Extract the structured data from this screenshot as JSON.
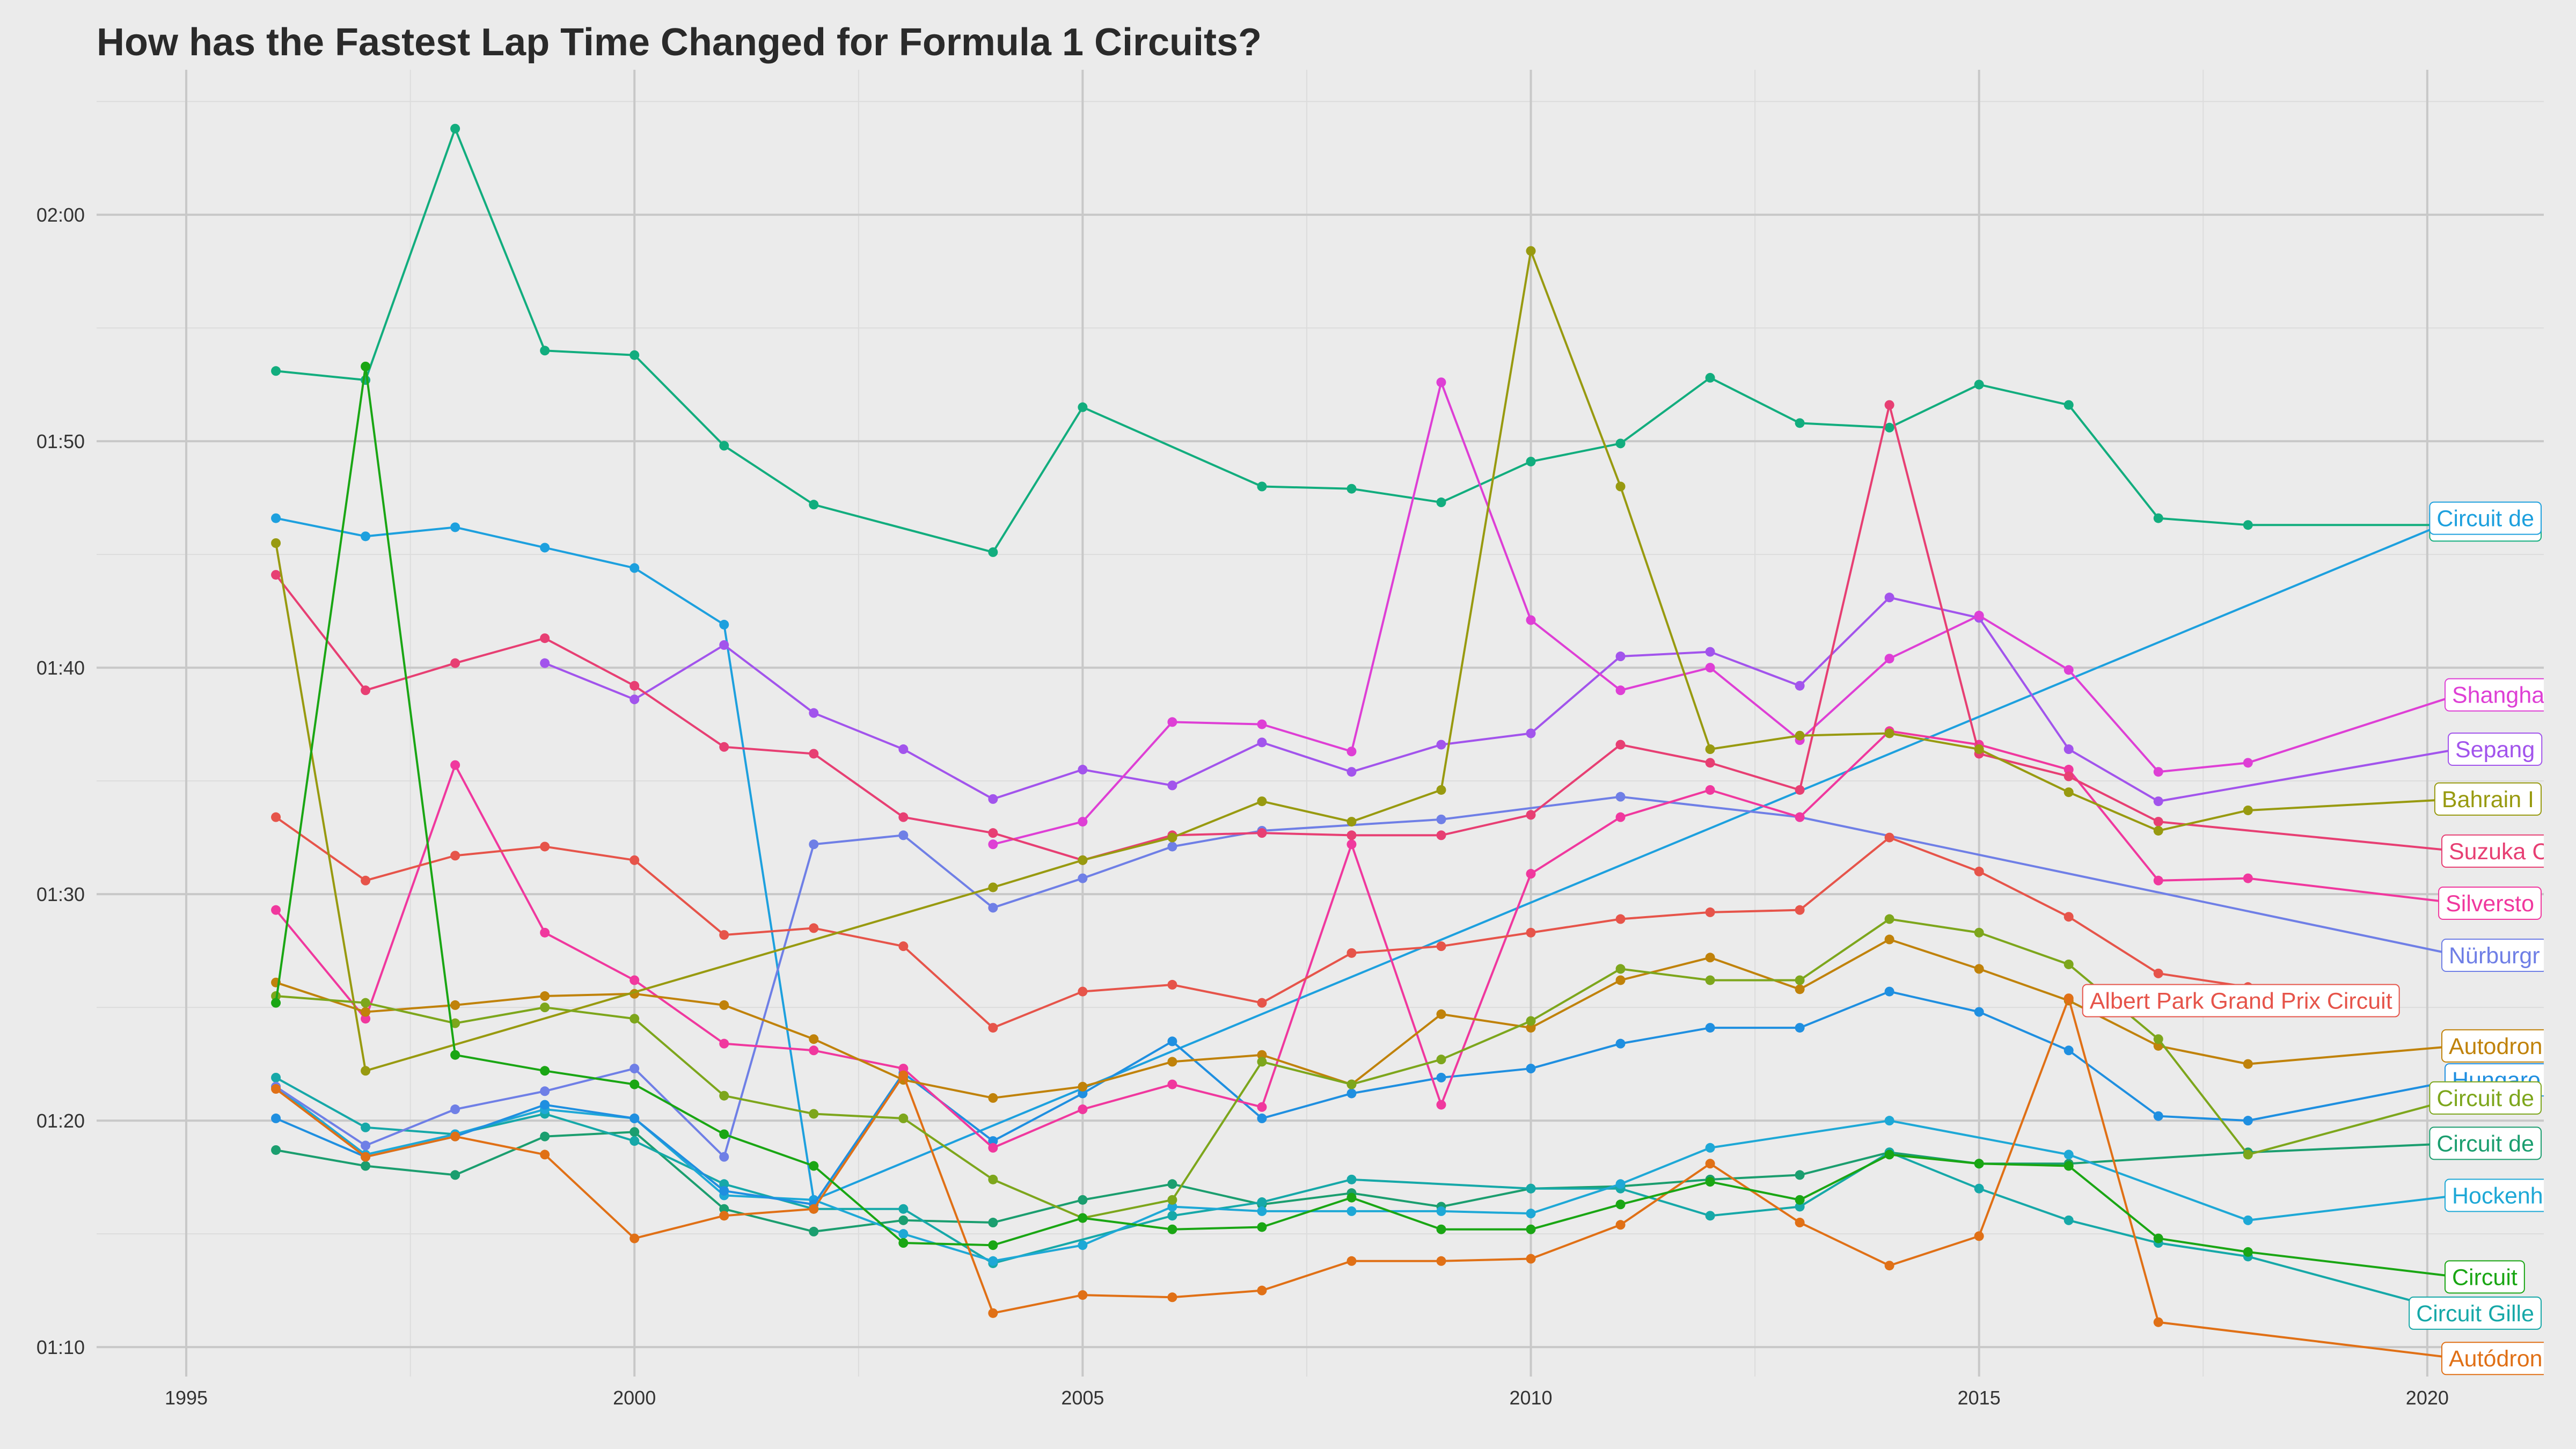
{
  "chart_data": {
    "type": "line",
    "title": "How has the Fastest Lap Time Changed for Formula 1 Circuits?",
    "xlabel": "",
    "ylabel": "",
    "x_ticks": [
      1995,
      2000,
      2005,
      2010,
      2015,
      2020
    ],
    "y_ticks": [
      "01:10",
      "01:20",
      "01:30",
      "01:40",
      "01:50",
      "02:00"
    ],
    "y_tick_values": [
      70,
      80,
      90,
      100,
      110,
      120
    ],
    "xlim": [
      1994,
      2021.3
    ],
    "ylim": [
      68.7,
      126.4
    ],
    "y_unit": "seconds",
    "grid": true,
    "legend": "none",
    "series": [
      {
        "name": "Circuit de Spa-Francorchamps",
        "label_text": "Circuit de",
        "color": "#12ad7e",
        "x": [
          1996,
          1997,
          1998,
          1999,
          2000,
          2001,
          2002,
          2004,
          2005,
          2007,
          2008,
          2009,
          2010,
          2011,
          2012,
          2013,
          2014,
          2015,
          2016,
          2017,
          2018
        ],
        "y": [
          113.1,
          112.7,
          123.8,
          114.0,
          113.8,
          109.8,
          107.2,
          105.1,
          111.5,
          108.0,
          107.9,
          107.3,
          109.1,
          109.9,
          112.8,
          110.8,
          110.6,
          112.5,
          111.6,
          106.6,
          106.3
        ],
        "label_y": 106.3
      },
      {
        "name": "Circuit de Monaco",
        "label_text": "Circuit de",
        "color": "#1b9e6f",
        "x": [
          1996,
          1997,
          1998,
          1999,
          2000,
          2001,
          2002,
          2003,
          2004,
          2005,
          2006,
          2007,
          2008,
          2009,
          2010,
          2011,
          2012,
          2013,
          2014,
          2015,
          2016,
          2018
        ],
        "y": [
          78.7,
          78.0,
          77.6,
          79.3,
          79.5,
          76.1,
          75.1,
          75.6,
          75.5,
          76.5,
          77.2,
          76.3,
          76.8,
          76.2,
          77.0,
          77.1,
          77.4,
          77.6,
          78.6,
          78.1,
          78.1,
          78.6
        ],
        "label_y": 79.0
      },
      {
        "name": "Circuit Gilles Villeneuve",
        "label_text": "Circuit Gille",
        "color": "#16a8a8",
        "x": [
          1996,
          1997,
          1998,
          1999,
          2000,
          2001,
          2002,
          2003,
          2004,
          2006,
          2007,
          2008,
          2010,
          2011,
          2012,
          2013,
          2014,
          2015,
          2016,
          2017,
          2018
        ],
        "y": [
          81.9,
          79.7,
          79.4,
          80.3,
          79.1,
          77.2,
          76.1,
          76.1,
          73.7,
          75.8,
          76.4,
          77.4,
          77.0,
          77.0,
          75.8,
          76.2,
          78.6,
          77.0,
          75.6,
          74.6,
          74.0
        ],
        "label_y": 71.5
      },
      {
        "name": "Hockenheimring",
        "label_text": "Hockenh",
        "color": "#1ea8d6",
        "x": [
          1996,
          1997,
          1998,
          1999,
          2000,
          2001,
          2002,
          2003,
          2004,
          2005,
          2006,
          2007,
          2008,
          2009,
          2010,
          2011,
          2012,
          2014,
          2016,
          2018
        ],
        "y": [
          81.5,
          78.5,
          79.4,
          80.5,
          80.1,
          76.7,
          76.5,
          75.0,
          73.8,
          74.5,
          76.2,
          76.0,
          76.0,
          76.0,
          75.9,
          77.2,
          78.8,
          80.0,
          78.5,
          75.6
        ],
        "label_y": 76.7
      },
      {
        "name": "Circuit de Barcelona-Catalunya",
        "label_text": "Circuit de",
        "color": "#1da0de",
        "x": [
          1996,
          1997,
          1998,
          1999,
          2000,
          2001,
          2002
        ],
        "y": [
          106.6,
          105.8,
          106.2,
          105.3,
          104.4,
          101.9,
          76.5
        ],
        "label_y": 106.6
      },
      {
        "name": "Hungaroring",
        "label_text": "Hungaro",
        "color": "#1f8fe0",
        "x": [
          1996,
          1997,
          1998,
          1999,
          2000,
          2001,
          2002,
          2003,
          2004,
          2005,
          2006,
          2007,
          2008,
          2009,
          2010,
          2011,
          2012,
          2013,
          2014,
          2015,
          2016,
          2017,
          2018
        ],
        "y": [
          80.1,
          78.4,
          79.3,
          80.7,
          80.1,
          76.9,
          76.3,
          82.1,
          79.1,
          81.2,
          83.5,
          80.1,
          81.2,
          81.9,
          82.3,
          83.4,
          84.1,
          84.1,
          85.7,
          84.8,
          83.1,
          80.2,
          80.0
        ],
        "label_y": 81.8
      },
      {
        "name": "Nürburgring",
        "label_text": "Nürburgr",
        "color": "#6f7fe6",
        "x": [
          1996,
          1997,
          1998,
          1999,
          2000,
          2001,
          2002,
          2003,
          2004,
          2005,
          2006,
          2007,
          2009,
          2011,
          2013
        ],
        "y": [
          81.5,
          78.9,
          80.5,
          81.3,
          82.3,
          78.4,
          92.2,
          92.6,
          89.4,
          90.7,
          92.1,
          92.8,
          93.3,
          94.3,
          93.4
        ],
        "label_y": 87.3
      },
      {
        "name": "Sepang International Circuit",
        "label_text": "Sepang",
        "color": "#a254ec",
        "x": [
          1999,
          2000,
          2001,
          2002,
          2003,
          2004,
          2005,
          2006,
          2007,
          2008,
          2009,
          2010,
          2011,
          2012,
          2013,
          2014,
          2015,
          2016,
          2017
        ],
        "y": [
          100.2,
          98.6,
          101.0,
          98.0,
          96.4,
          94.2,
          95.5,
          94.8,
          96.7,
          95.4,
          96.6,
          97.1,
          100.5,
          100.7,
          99.2,
          103.1,
          102.2,
          96.4,
          94.1
        ],
        "label_y": 96.4
      },
      {
        "name": "Shanghai International Circuit",
        "label_text": "Shangha",
        "color": "#de3fd5",
        "x": [
          2004,
          2005,
          2006,
          2007,
          2008,
          2009,
          2010,
          2011,
          2012,
          2013,
          2014,
          2015,
          2016,
          2017,
          2018
        ],
        "y": [
          92.2,
          93.2,
          97.6,
          97.5,
          96.3,
          112.6,
          102.1,
          99.0,
          100.0,
          96.8,
          100.4,
          102.3,
          99.9,
          95.4,
          95.8
        ],
        "label_y": 98.8
      },
      {
        "name": "Silverstone Circuit",
        "label_text": "Silversto",
        "color": "#f0389e",
        "x": [
          1996,
          1997,
          1998,
          1999,
          2000,
          2001,
          2002,
          2003,
          2004,
          2005,
          2006,
          2007,
          2008,
          2009,
          2010,
          2011,
          2012,
          2013,
          2014,
          2015,
          2016,
          2017,
          2018
        ],
        "y": [
          89.3,
          84.5,
          95.7,
          88.3,
          86.2,
          83.4,
          83.1,
          82.3,
          78.8,
          80.5,
          81.6,
          80.6,
          92.2,
          80.7,
          90.9,
          93.4,
          94.6,
          93.4,
          97.2,
          96.6,
          95.5,
          90.6,
          90.7
        ],
        "label_y": 89.6
      },
      {
        "name": "Suzuka Circuit",
        "label_text": "Suzuka C",
        "color": "#e73f73",
        "x": [
          1996,
          1997,
          1998,
          1999,
          2000,
          2001,
          2002,
          2003,
          2004,
          2005,
          2006,
          2007,
          2008,
          2009,
          2010,
          2011,
          2012,
          2013,
          2014,
          2015,
          2016,
          2017
        ],
        "y": [
          104.1,
          99.0,
          100.2,
          101.3,
          99.2,
          96.5,
          96.2,
          93.4,
          92.7,
          91.5,
          92.6,
          92.7,
          92.6,
          92.6,
          93.5,
          96.6,
          95.8,
          94.6,
          111.6,
          96.2,
          95.2,
          93.2
        ],
        "label_y": 91.9
      },
      {
        "name": "Albert Park Grand Prix Circuit",
        "label_text": "Albert Park Grand Prix Circuit",
        "color": "#e6544a",
        "x": [
          1996,
          1997,
          1998,
          1999,
          2000,
          2001,
          2002,
          2003,
          2004,
          2005,
          2006,
          2007,
          2008,
          2009,
          2010,
          2011,
          2012,
          2013,
          2014,
          2015,
          2016,
          2017,
          2018
        ],
        "y": [
          93.4,
          90.6,
          91.7,
          92.1,
          91.5,
          88.2,
          88.5,
          87.7,
          84.1,
          85.7,
          86.0,
          85.2,
          87.4,
          87.7,
          88.3,
          88.9,
          89.2,
          89.3,
          92.5,
          91.0,
          89.0,
          86.5,
          85.9
        ],
        "label_y": 85.3
      },
      {
        "name": "Autodromo Nazionale di Monza",
        "label_text": "Autodron",
        "color": "#c0820a",
        "x": [
          1996,
          1997,
          1998,
          1999,
          2000,
          2001,
          2002,
          2003,
          2004,
          2005,
          2006,
          2007,
          2008,
          2009,
          2010,
          2011,
          2012,
          2013,
          2014,
          2015,
          2016,
          2017,
          2018
        ],
        "y": [
          86.1,
          84.8,
          85.1,
          85.5,
          85.6,
          85.1,
          83.6,
          81.8,
          81.0,
          81.5,
          82.6,
          82.9,
          81.6,
          84.7,
          84.1,
          86.2,
          87.2,
          85.8,
          88.0,
          86.7,
          85.3,
          83.3,
          82.5
        ],
        "label_y": 83.3
      },
      {
        "name": "Autódromo José Carlos Pace",
        "label_text": "Autódron",
        "color": "#e07016",
        "x": [
          1996,
          1997,
          1998,
          1999,
          2000,
          2001,
          2002,
          2003,
          2004,
          2005,
          2006,
          2007,
          2008,
          2009,
          2010,
          2011,
          2012,
          2013,
          2014,
          2015,
          2016,
          2017
        ],
        "y": [
          81.4,
          78.4,
          79.3,
          78.5,
          74.8,
          75.8,
          76.1,
          82.0,
          71.5,
          72.3,
          72.2,
          72.5,
          73.8,
          73.8,
          73.9,
          75.4,
          78.1,
          75.5,
          73.6,
          74.9,
          85.4,
          71.1
        ],
        "label_y": 69.5
      },
      {
        "name": "Bahrain International Circuit",
        "label_text": "Bahrain I",
        "color": "#989a10",
        "x": [
          1996,
          1997,
          2004,
          2005,
          2006,
          2007,
          2008,
          2009,
          2010,
          2011,
          2012,
          2013,
          2014,
          2015,
          2016,
          2017,
          2018
        ],
        "y": [
          105.5,
          82.2,
          90.3,
          91.5,
          92.5,
          94.1,
          93.2,
          94.6,
          118.4,
          108.0,
          96.4,
          97.0,
          97.1,
          96.4,
          94.5,
          92.8,
          93.7
        ],
        "label_y": 94.2
      },
      {
        "name": "Circuit de Nevers Magny-Cours",
        "label_text": "Circuit de",
        "color": "#7da61c",
        "x": [
          1996,
          1997,
          1998,
          1999,
          2000,
          2001,
          2002,
          2003,
          2004,
          2005,
          2006,
          2007,
          2008,
          2009,
          2010,
          2011,
          2012,
          2013,
          2014,
          2015,
          2016,
          2017,
          2018
        ],
        "y": [
          85.5,
          85.2,
          84.3,
          85.0,
          84.5,
          81.1,
          80.3,
          80.1,
          77.4,
          75.7,
          76.5,
          82.6,
          81.6,
          82.7,
          84.4,
          86.7,
          86.2,
          86.2,
          88.9,
          88.3,
          86.9,
          83.6,
          78.5
        ],
        "label_y": 81.0
      },
      {
        "name": "Circuit Paul Ricard",
        "label_text": "Circuit",
        "color": "#1aa614",
        "x": [
          1996,
          1997,
          1998,
          1999,
          2000,
          2001,
          2002,
          2003,
          2004,
          2005,
          2006,
          2007,
          2008,
          2009,
          2010,
          2011,
          2012,
          2013,
          2014,
          2015,
          2016,
          2017,
          2018
        ],
        "y": [
          85.2,
          113.3,
          82.9,
          82.2,
          81.6,
          79.4,
          78.0,
          74.6,
          74.5,
          75.7,
          75.2,
          75.3,
          76.6,
          75.2,
          75.2,
          76.3,
          77.3,
          76.5,
          78.5,
          78.1,
          78.0,
          74.8,
          74.2
        ],
        "label_y": 73.1
      }
    ]
  }
}
